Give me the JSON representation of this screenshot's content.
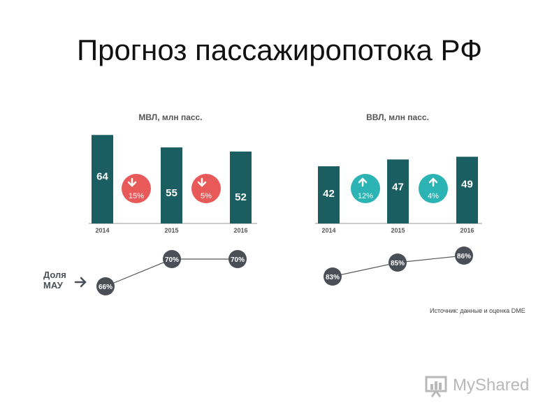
{
  "title": "Прогноз пассажиропотока РФ",
  "colors": {
    "bar": "#1b5e62",
    "down": "#e85a5a",
    "up": "#2cb3b3",
    "dot": "#4a4f57",
    "axis": "#999999",
    "line": "#555555",
    "subtitle": "#555555"
  },
  "chart_data": [
    {
      "type": "bar",
      "title": "МВЛ, млн пасс.",
      "categories": [
        "2014",
        "2015",
        "2016"
      ],
      "values": [
        64,
        55,
        52
      ],
      "changes": [
        {
          "label": "15%",
          "direction": "down"
        },
        {
          "label": "5%",
          "direction": "down"
        }
      ],
      "share": {
        "label": "Доля МАУ",
        "values": [
          66,
          70,
          70
        ],
        "labels": [
          "66%",
          "70%",
          "70%"
        ]
      }
    },
    {
      "type": "bar",
      "title": "ВВЛ, млн пасс.",
      "categories": [
        "2014",
        "2015",
        "2016"
      ],
      "values": [
        42,
        47,
        49
      ],
      "changes": [
        {
          "label": "12%",
          "direction": "up"
        },
        {
          "label": "4%",
          "direction": "up"
        }
      ],
      "share": {
        "label": "",
        "values": [
          83,
          85,
          86
        ],
        "labels": [
          "83%",
          "85%",
          "86%"
        ]
      }
    }
  ],
  "source": "Источник: данные и оценка DME",
  "watermark": "MyShared"
}
